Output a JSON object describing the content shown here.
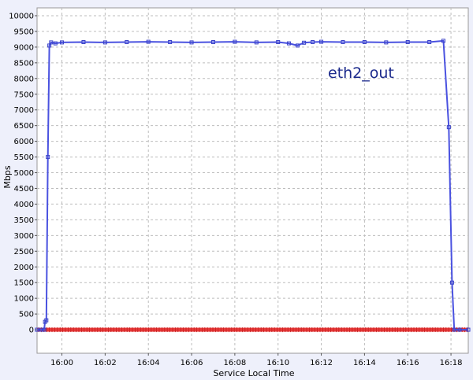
{
  "chart_data": {
    "type": "line",
    "title": "",
    "xlabel": "Service Local Time",
    "ylabel": "Mbps",
    "annotation": "eth2_out",
    "ylim": [
      -750,
      10250
    ],
    "yticks": [
      0,
      500,
      1000,
      1500,
      2000,
      2500,
      3000,
      3500,
      4000,
      4500,
      5000,
      5500,
      6000,
      6500,
      7000,
      7500,
      8000,
      8500,
      9000,
      9500,
      10000
    ],
    "xlim_minutes": [
      -1.15,
      18.8
    ],
    "xticks": [
      {
        "label": "16:00",
        "min": 0
      },
      {
        "label": "16:02",
        "min": 2
      },
      {
        "label": "16:04",
        "min": 4
      },
      {
        "label": "16:06",
        "min": 6
      },
      {
        "label": "16:08",
        "min": 8
      },
      {
        "label": "16:10",
        "min": 10
      },
      {
        "label": "16:12",
        "min": 12
      },
      {
        "label": "16:14",
        "min": 14
      },
      {
        "label": "16:16",
        "min": 16
      },
      {
        "label": "16:18",
        "min": 18
      }
    ],
    "grid": true,
    "series": [
      {
        "name": "eth2_out",
        "color": "#4a52e0",
        "points": [
          [
            -1.15,
            0
          ],
          [
            -0.95,
            0
          ],
          [
            -0.82,
            0
          ],
          [
            -0.78,
            250
          ],
          [
            -0.72,
            300
          ],
          [
            -0.65,
            5500
          ],
          [
            -0.58,
            9050
          ],
          [
            -0.5,
            9150
          ],
          [
            -0.3,
            9120
          ],
          [
            0,
            9150
          ],
          [
            1,
            9160
          ],
          [
            2,
            9150
          ],
          [
            3,
            9160
          ],
          [
            4,
            9170
          ],
          [
            5,
            9160
          ],
          [
            6,
            9150
          ],
          [
            7,
            9160
          ],
          [
            8,
            9170
          ],
          [
            9,
            9150
          ],
          [
            10,
            9160
          ],
          [
            10.5,
            9120
          ],
          [
            10.9,
            9050
          ],
          [
            11.2,
            9140
          ],
          [
            11.6,
            9160
          ],
          [
            12,
            9170
          ],
          [
            13,
            9160
          ],
          [
            14,
            9160
          ],
          [
            15,
            9150
          ],
          [
            16,
            9160
          ],
          [
            17,
            9160
          ],
          [
            17.65,
            9200
          ],
          [
            17.9,
            6450
          ],
          [
            18.05,
            1500
          ],
          [
            18.15,
            0
          ],
          [
            18.4,
            0
          ],
          [
            18.8,
            0
          ]
        ]
      },
      {
        "name": "",
        "color": "#e83a3a",
        "points": [
          [
            -1.15,
            0
          ],
          [
            18.8,
            0
          ]
        ]
      }
    ]
  }
}
